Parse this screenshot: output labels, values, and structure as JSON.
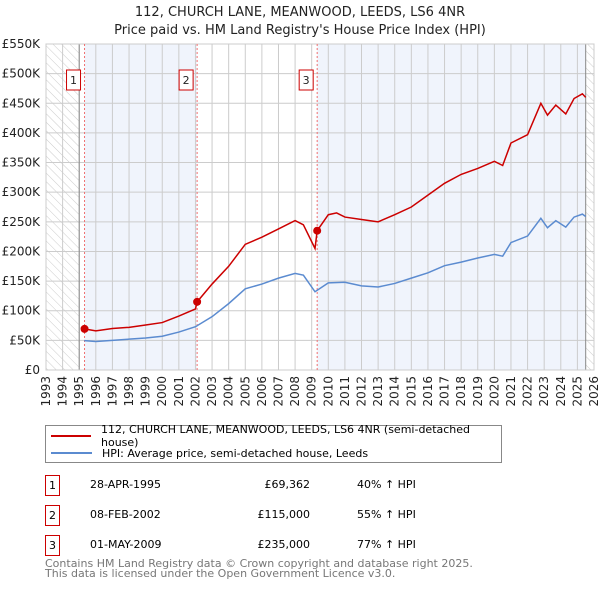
{
  "title": "112, CHURCH LANE, MEANWOOD, LEEDS, LS6 4NR",
  "subtitle": "Price paid vs. HM Land Registry's House Price Index (HPI)",
  "chart_data": {
    "type": "line",
    "xlim": [
      1993,
      2026
    ],
    "ylim": [
      0,
      550000
    ],
    "x_ticks": [
      1993,
      1994,
      1995,
      1996,
      1997,
      1998,
      1999,
      2000,
      2001,
      2002,
      2003,
      2004,
      2005,
      2006,
      2007,
      2008,
      2009,
      2010,
      2011,
      2012,
      2013,
      2014,
      2015,
      2016,
      2017,
      2018,
      2019,
      2020,
      2021,
      2022,
      2023,
      2024,
      2025,
      2026
    ],
    "y_ticks": [
      0,
      50000,
      100000,
      150000,
      200000,
      250000,
      300000,
      350000,
      400000,
      450000,
      500000,
      550000
    ],
    "y_tick_labels": [
      "£0",
      "£50K",
      "£100K",
      "£150K",
      "£200K",
      "£250K",
      "£300K",
      "£350K",
      "£400K",
      "£450K",
      "£500K",
      "£550K"
    ],
    "colors": {
      "property": "#cc0000",
      "hpi": "#5b8bd0"
    },
    "series": [
      {
        "name": "112, CHURCH LANE, MEANWOOD, LEEDS, LS6 4NR (semi-detached house)",
        "color": "#cc0000",
        "x": [
          1995.3,
          1996,
          1997,
          1998,
          1999,
          2000,
          2001,
          2002.0,
          2002.1,
          2003,
          2004,
          2005,
          2006,
          2007,
          2008,
          2008.5,
          2009.2,
          2009.33,
          2010,
          2010.5,
          2011,
          2012,
          2013,
          2014,
          2015,
          2016,
          2017,
          2018,
          2019,
          2020,
          2020.5,
          2021,
          2022,
          2022.8,
          2023.2,
          2023.7,
          2024.3,
          2024.8,
          2025.3,
          2025.5
        ],
        "y": [
          69362,
          66000,
          70000,
          72000,
          76000,
          80000,
          91000,
          103000,
          115000,
          145000,
          175000,
          212000,
          224000,
          238000,
          252000,
          245000,
          205000,
          235000,
          262000,
          265000,
          258000,
          254000,
          250000,
          262000,
          275000,
          295000,
          315000,
          330000,
          340000,
          352000,
          345000,
          383000,
          397000,
          450000,
          430000,
          447000,
          432000,
          458000,
          466000,
          460000
        ]
      },
      {
        "name": "HPI: Average price, semi-detached house, Leeds",
        "color": "#5b8bd0",
        "x": [
          1995.3,
          1996,
          1997,
          1998,
          1999,
          2000,
          2001,
          2002,
          2003,
          2004,
          2005,
          2006,
          2007,
          2008,
          2008.5,
          2009.2,
          2010,
          2011,
          2012,
          2013,
          2014,
          2015,
          2016,
          2017,
          2018,
          2019,
          2020,
          2020.5,
          2021,
          2022,
          2022.8,
          2023.2,
          2023.7,
          2024.3,
          2024.8,
          2025.3,
          2025.5
        ],
        "y": [
          49500,
          48000,
          50000,
          52000,
          54000,
          57000,
          64000,
          73000,
          90000,
          112000,
          137000,
          145000,
          155000,
          163000,
          160000,
          132000,
          147000,
          148000,
          142000,
          140000,
          146000,
          155000,
          164000,
          176000,
          182000,
          189000,
          195000,
          192000,
          215000,
          226000,
          256000,
          240000,
          252000,
          241000,
          258000,
          263000,
          259000
        ]
      }
    ],
    "sales": [
      {
        "label": "1",
        "x": 1995.32,
        "y": 69362,
        "date": "28-APR-1995",
        "price": "£69,362",
        "hpi": "40% ↑ HPI"
      },
      {
        "label": "2",
        "x": 2002.1,
        "y": 115000,
        "date": "08-FEB-2002",
        "price": "£115,000",
        "hpi": "55% ↑ HPI"
      },
      {
        "label": "3",
        "x": 2009.33,
        "y": 235000,
        "date": "01-MAY-2009",
        "price": "£235,000",
        "hpi": "77% ↑ HPI"
      }
    ],
    "data_end": 2025.5
  },
  "legend": {
    "property": "112, CHURCH LANE, MEANWOOD, LEEDS, LS6 4NR (semi-detached house)",
    "hpi": "HPI: Average price, semi-detached house, Leeds"
  },
  "footer": {
    "line1": "Contains HM Land Registry data © Crown copyright and database right 2025.",
    "line2": "This data is licensed under the Open Government Licence v3.0."
  }
}
